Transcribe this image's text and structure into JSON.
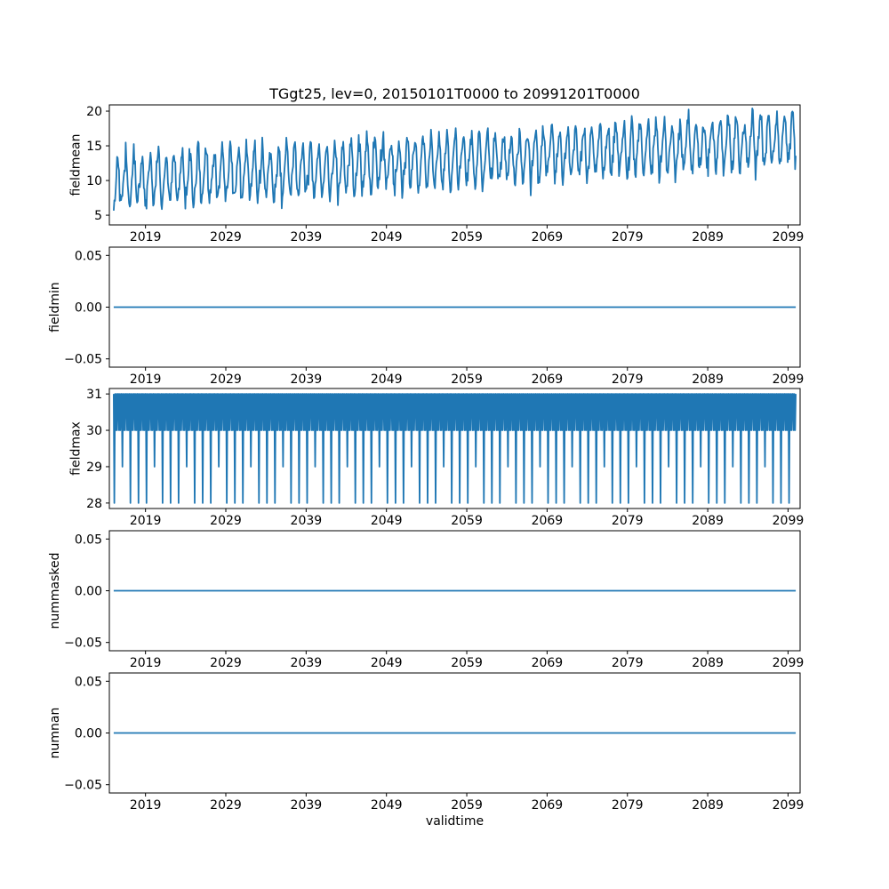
{
  "figure": {
    "title": "TGgt25, lev=0, 20150101T0000 to 20991201T0000",
    "xlabel": "validtime",
    "background_color": "#ffffff",
    "axis_color": "#000000",
    "line_color": "#1f77b4"
  },
  "chart_data": {
    "type": "line",
    "title": "TGgt25, lev=0, 20150101T0000 to 20991201T0000",
    "xlabel": "validtime",
    "time_start": "20150101T0000",
    "time_end": "20991201T0000",
    "cadence": "monthly",
    "start_year": 2015,
    "end_year": 2099,
    "n_points": 1020,
    "xlim": [
      2014.5,
      2100.5
    ],
    "x_ticks": [
      2019,
      2029,
      2039,
      2049,
      2059,
      2069,
      2079,
      2089,
      2099
    ],
    "line_color": "#1f77b4",
    "legend": "none",
    "grid": false,
    "subplots": [
      {
        "ylabel": "fieldmean",
        "ylim": [
          3.6,
          20.9
        ],
        "y_ticks": [
          5,
          10,
          15,
          20
        ],
        "y_tick_labels": [
          "5",
          "10",
          "15",
          "20"
        ],
        "series": {
          "model": "seasonal_trend_noise",
          "description": "Annual seasonal cycle riding on an upward trend; troughs rise from about 5 to 13 and peaks from about 14 to 19.5 between 2015 and 2099",
          "baseline_start": 9.8,
          "baseline_end": 15.8,
          "amplitude_start": 3.5,
          "amplitude_end": 3.2,
          "harmonic2_amplitude": 0.6,
          "peak_year_fraction": 0.54,
          "noise_sd": 0.8,
          "seed": 42,
          "value_min": 4.0,
          "value_max": 20.4
        }
      },
      {
        "ylabel": "fieldmin",
        "ylim": [
          -0.058,
          0.058
        ],
        "y_ticks": [
          -0.05,
          0.0,
          0.05
        ],
        "y_tick_labels": [
          "−0.05",
          "0.00",
          "0.05"
        ],
        "series": {
          "model": "constant",
          "value": 0.0,
          "description": "Constant zero for the whole period"
        }
      },
      {
        "ylabel": "fieldmax",
        "ylim": [
          27.85,
          31.15
        ],
        "y_ticks": [
          28,
          29,
          30,
          31
        ],
        "y_tick_labels": [
          "28",
          "29",
          "30",
          "31"
        ],
        "series": {
          "model": "days_in_month",
          "description": "Monthly values alternating between 31 and 30 forming a dense band, with drops to 28 each February (29 in leap years)"
        }
      },
      {
        "ylabel": "nummasked",
        "ylim": [
          -0.058,
          0.058
        ],
        "y_ticks": [
          -0.05,
          0.0,
          0.05
        ],
        "y_tick_labels": [
          "−0.05",
          "0.00",
          "0.05"
        ],
        "series": {
          "model": "constant",
          "value": 0.0,
          "description": "Constant zero for the whole period"
        }
      },
      {
        "ylabel": "numnan",
        "ylim": [
          -0.058,
          0.058
        ],
        "y_ticks": [
          -0.05,
          0.0,
          0.05
        ],
        "y_tick_labels": [
          "−0.05",
          "0.00",
          "0.05"
        ],
        "series": {
          "model": "constant",
          "value": 0.0,
          "description": "Constant zero for the whole period"
        }
      }
    ]
  }
}
